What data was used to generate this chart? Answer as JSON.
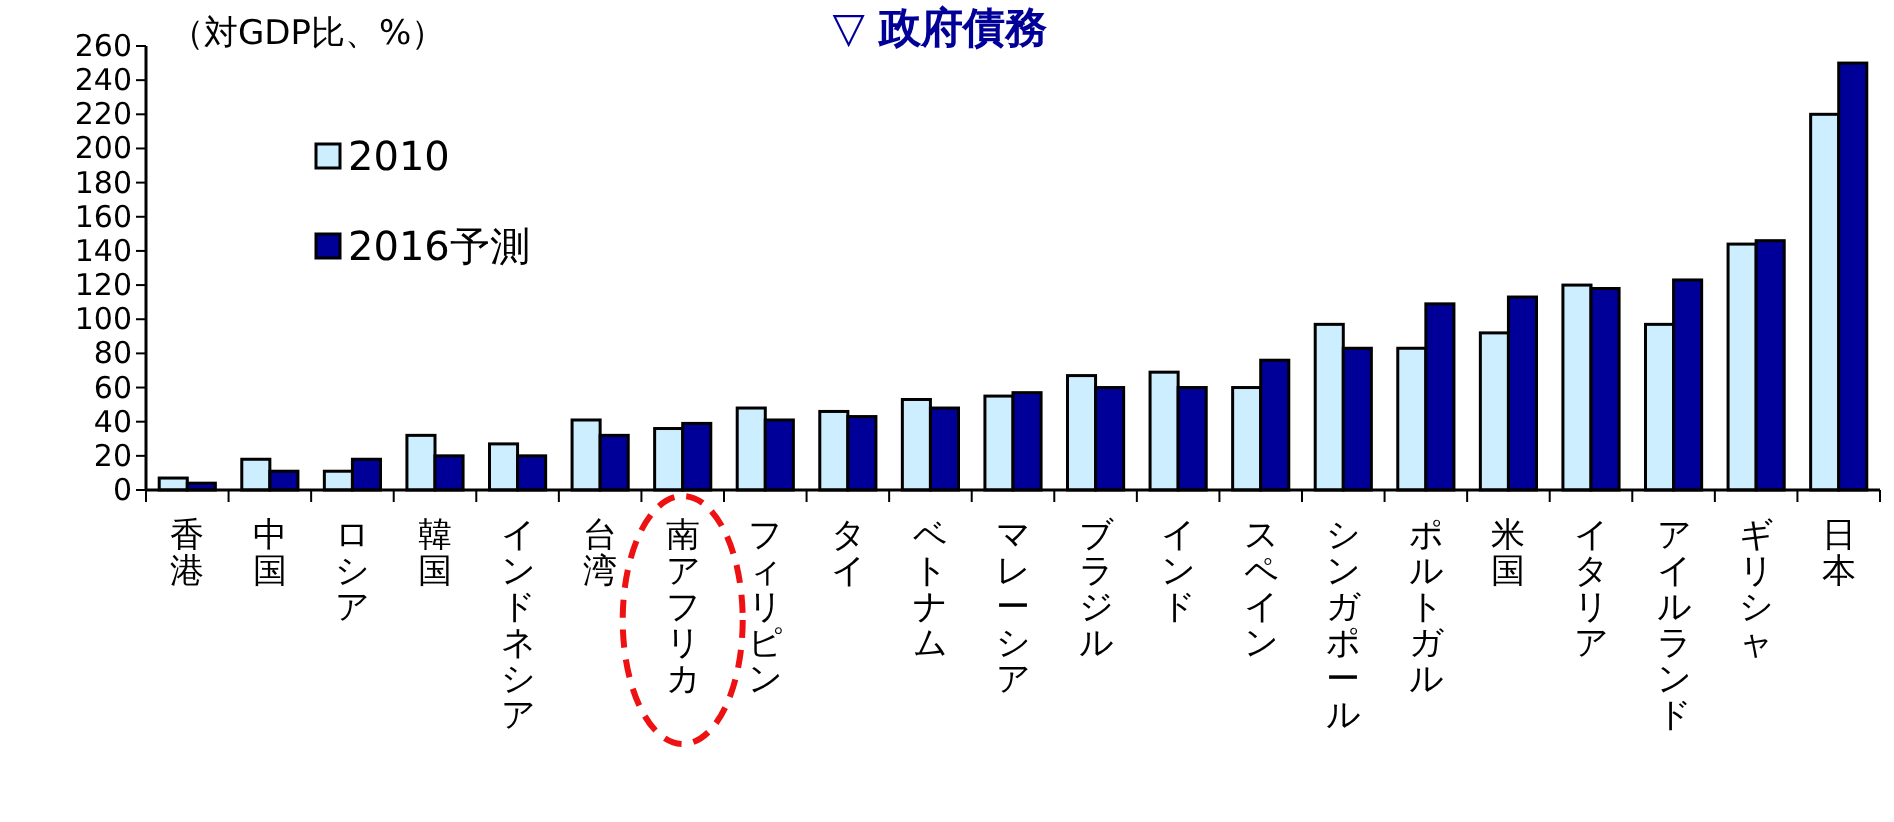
{
  "chart_data": {
    "type": "bar",
    "title": "▽ 政府債務",
    "ylabel": "（対GDP比、%）",
    "categories": [
      "香港",
      "中国",
      "ロシア",
      "韓国",
      "インドネシア",
      "台湾",
      "南アフリカ",
      "フィリピン",
      "タイ",
      "ベトナム",
      "マレーシア",
      "ブラジル",
      "インド",
      "スペイン",
      "シンガポール",
      "ポルトガル",
      "米国",
      "イタリア",
      "アイルランド",
      "ギリシャ",
      "日本"
    ],
    "series": [
      {
        "name": "2010",
        "color": "#cceeff",
        "values": [
          7,
          18,
          11,
          32,
          27,
          41,
          36,
          48,
          46,
          53,
          55,
          67,
          69,
          60,
          97,
          83,
          92,
          120,
          97,
          144,
          220
        ]
      },
      {
        "name": "2016予測",
        "color": "#000099",
        "values": [
          4,
          11,
          18,
          20,
          20,
          32,
          39,
          41,
          43,
          48,
          57,
          60,
          60,
          76,
          83,
          109,
          113,
          118,
          123,
          146,
          250
        ]
      }
    ],
    "ylim": [
      0,
      260
    ],
    "yticks": [
      0,
      20,
      40,
      60,
      80,
      100,
      120,
      140,
      160,
      180,
      200,
      220,
      240,
      260
    ],
    "legend": "top left",
    "grid": false
  }
}
